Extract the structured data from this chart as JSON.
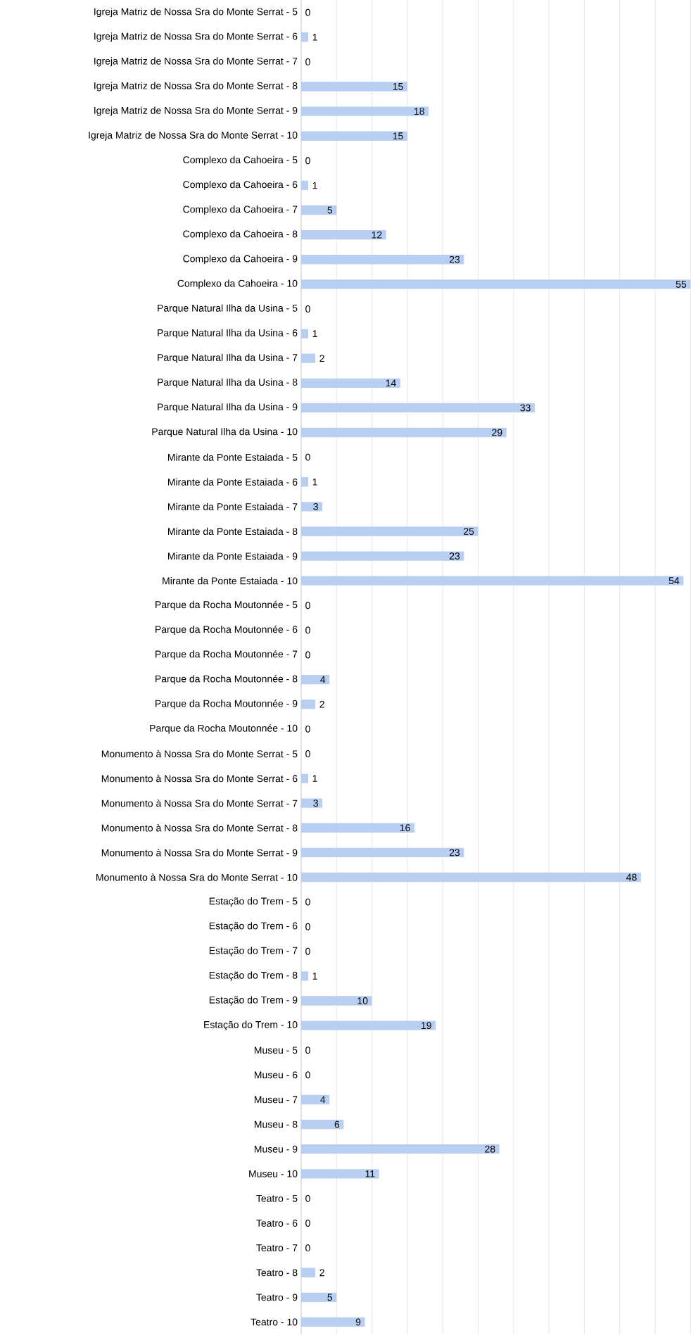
{
  "chart_data": {
    "type": "bar",
    "orientation": "horizontal",
    "categories": [
      "Igreja Matriz de Nossa Sra do Monte Serrat - 5",
      "Igreja Matriz de Nossa Sra do Monte Serrat - 6",
      "Igreja Matriz de Nossa Sra do Monte Serrat - 7",
      "Igreja Matriz de Nossa Sra do Monte Serrat - 8",
      "Igreja Matriz de Nossa Sra do Monte Serrat - 9",
      "Igreja Matriz de Nossa Sra do Monte Serrat - 10",
      "Complexo da Cahoeira - 5",
      "Complexo da Cahoeira - 6",
      "Complexo da Cahoeira - 7",
      "Complexo da Cahoeira - 8",
      "Complexo da Cahoeira - 9",
      "Complexo da Cahoeira - 10",
      "Parque Natural Ilha da Usina - 5",
      "Parque Natural Ilha da Usina - 6",
      "Parque Natural Ilha da Usina - 7",
      "Parque Natural Ilha da Usina - 8",
      "Parque Natural Ilha da Usina - 9",
      "Parque Natural Ilha da Usina - 10",
      "Mirante da Ponte Estaiada - 5",
      "Mirante da Ponte Estaiada - 6",
      "Mirante da Ponte Estaiada - 7",
      "Mirante da Ponte Estaiada - 8",
      "Mirante da Ponte Estaiada - 9",
      "Mirante da Ponte Estaiada - 10",
      "Parque da Rocha Moutonnée - 5",
      "Parque da Rocha Moutonnée - 6",
      "Parque da Rocha Moutonnée - 7",
      "Parque da Rocha Moutonnée - 8",
      "Parque da Rocha Moutonnée - 9",
      "Parque da Rocha Moutonnée - 10",
      "Monumento à Nossa Sra do Monte Serrat - 5",
      "Monumento à Nossa Sra do Monte Serrat - 6",
      "Monumento à Nossa Sra do Monte Serrat - 7",
      "Monumento à Nossa Sra do Monte Serrat - 8",
      "Monumento à Nossa Sra do Monte Serrat - 9",
      "Monumento à Nossa Sra do Monte Serrat - 10",
      "Estação do Trem - 5",
      "Estação do Trem - 6",
      "Estação do Trem - 7",
      "Estação do Trem - 8",
      "Estação do Trem - 9",
      "Estação do Trem - 10",
      "Museu - 5",
      "Museu - 6",
      "Museu - 7",
      "Museu - 8",
      "Museu - 9",
      "Museu - 10",
      "Teatro - 5",
      "Teatro - 6",
      "Teatro - 7",
      "Teatro - 8",
      "Teatro - 9",
      "Teatro - 10"
    ],
    "values": [
      0,
      1,
      0,
      15,
      18,
      15,
      0,
      1,
      5,
      12,
      23,
      55,
      0,
      1,
      2,
      14,
      33,
      29,
      0,
      1,
      3,
      25,
      23,
      54,
      0,
      0,
      0,
      4,
      2,
      0,
      0,
      1,
      3,
      16,
      23,
      48,
      0,
      0,
      0,
      1,
      10,
      19,
      0,
      0,
      4,
      6,
      28,
      11,
      0,
      0,
      0,
      2,
      5,
      9
    ],
    "color": "#b9cff2",
    "data_labels": true,
    "grid": "x",
    "tick_labels": "y"
  }
}
